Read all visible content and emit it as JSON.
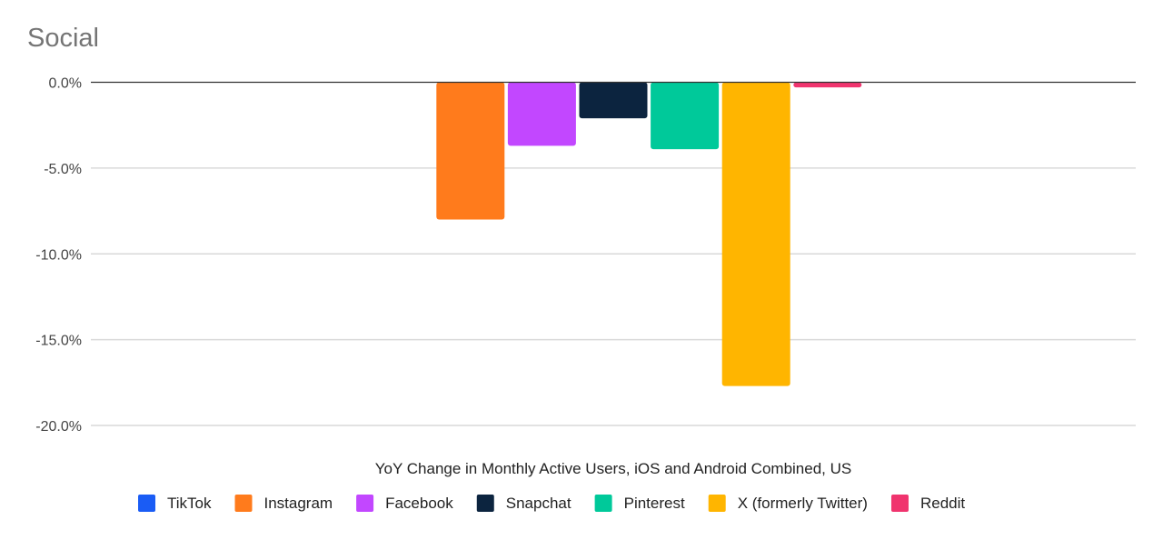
{
  "chart_data": {
    "type": "bar",
    "title": "Social",
    "xlabel": "YoY Change in Monthly Active Users, iOS and Android Combined, US",
    "ylabel": "",
    "ylim": [
      -20,
      0
    ],
    "yticks": [
      0,
      -5,
      -10,
      -15,
      -20
    ],
    "ytick_labels": [
      "0.0%",
      "-5.0%",
      "-10.0%",
      "-15.0%",
      "-20.0%"
    ],
    "grid": true,
    "legend_position": "bottom",
    "series": [
      {
        "name": "TikTok",
        "value": 0.0,
        "color": "#1a5cf5"
      },
      {
        "name": "Instagram",
        "value": -8.0,
        "color": "#ff7b1c"
      },
      {
        "name": "Facebook",
        "value": -3.7,
        "color": "#c247ff"
      },
      {
        "name": "Snapchat",
        "value": -2.1,
        "color": "#0c243f"
      },
      {
        "name": "Pinterest",
        "value": -3.9,
        "color": "#00c99a"
      },
      {
        "name": "X (formerly Twitter)",
        "value": -17.7,
        "color": "#ffb500"
      },
      {
        "name": "Reddit",
        "value": -0.3,
        "color": "#f0346e"
      }
    ]
  }
}
